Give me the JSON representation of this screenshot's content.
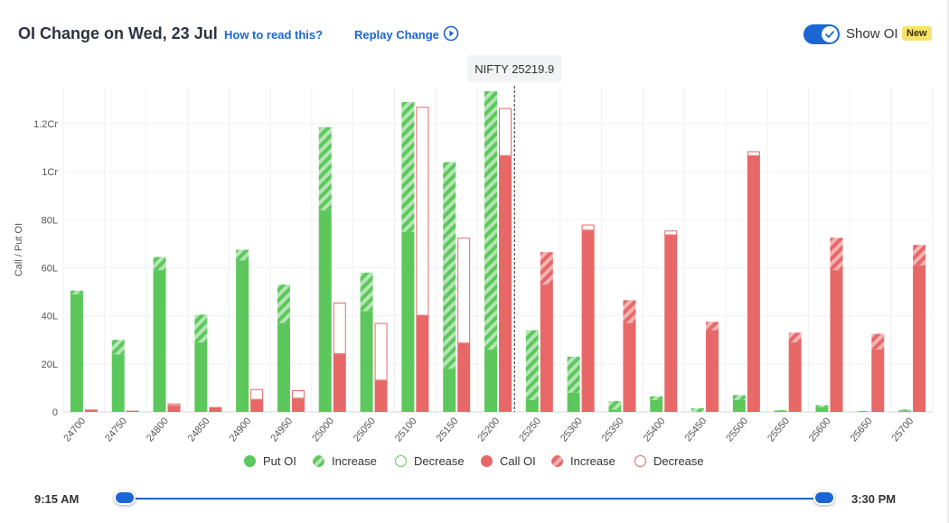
{
  "header": {
    "title": "OI Change on Wed, 23 Jul",
    "how_link": "How to read this?",
    "replay_link": "Replay Change",
    "show_oi_label": "Show OI",
    "new_badge": "New",
    "show_oi_enabled": true
  },
  "colors": {
    "put": "#5cc85c",
    "put_light": "#a6dfa6",
    "call": "#e86767",
    "call_light": "#f2abab",
    "accent": "#1a66d4"
  },
  "chart_data": {
    "type": "bar",
    "ylabel": "Call / Put OI",
    "ylim": [
      0,
      1.35
    ],
    "y_ticks": [
      {
        "value": 0,
        "label": "0"
      },
      {
        "value": 0.2,
        "label": "20L"
      },
      {
        "value": 0.4,
        "label": "40L"
      },
      {
        "value": 0.6,
        "label": "60L"
      },
      {
        "value": 0.8,
        "label": "80L"
      },
      {
        "value": 1.0,
        "label": "1Cr"
      },
      {
        "value": 1.2,
        "label": "1.2Cr"
      }
    ],
    "y_unit": "Cr",
    "spot_label": "NIFTY 25219.9",
    "spot_value": 25219.9,
    "grid": true,
    "legend_position": "bottom",
    "legend": [
      "Put OI",
      "Increase",
      "Decrease",
      "Call OI",
      "Increase",
      "Decrease"
    ],
    "strikes": [
      "24700",
      "24750",
      "24800",
      "24850",
      "24900",
      "24950",
      "25000",
      "25050",
      "25100",
      "25150",
      "25200",
      "25250",
      "25300",
      "25350",
      "25400",
      "25450",
      "25500",
      "25550",
      "25600",
      "25650",
      "25700"
    ],
    "put_start": [
      0.49,
      0.24,
      0.59,
      0.29,
      0.63,
      0.37,
      0.84,
      0.42,
      0.75,
      0.18,
      0.26,
      0.05,
      0.08,
      0.01,
      0.05,
      0.0,
      0.05,
      0.005,
      0.02,
      0.002,
      0.005
    ],
    "put_end": [
      0.505,
      0.3,
      0.645,
      0.405,
      0.675,
      0.53,
      1.185,
      0.58,
      1.29,
      1.04,
      1.335,
      0.34,
      0.23,
      0.045,
      0.065,
      0.015,
      0.07,
      0.008,
      0.028,
      0.004,
      0.01
    ],
    "call_start": [
      0.01,
      0.005,
      0.035,
      0.02,
      0.095,
      0.09,
      0.455,
      0.37,
      1.27,
      0.725,
      1.265,
      0.53,
      0.78,
      0.37,
      0.755,
      0.34,
      1.085,
      0.29,
      0.59,
      0.26,
      0.61
    ],
    "call_end": [
      0.01,
      0.005,
      0.025,
      0.02,
      0.05,
      0.055,
      0.24,
      0.13,
      0.4,
      0.285,
      1.065,
      0.665,
      0.755,
      0.465,
      0.735,
      0.375,
      1.065,
      0.33,
      0.725,
      0.325,
      0.695
    ]
  },
  "slider": {
    "start_time": "9:15 AM",
    "end_time": "3:30 PM"
  }
}
